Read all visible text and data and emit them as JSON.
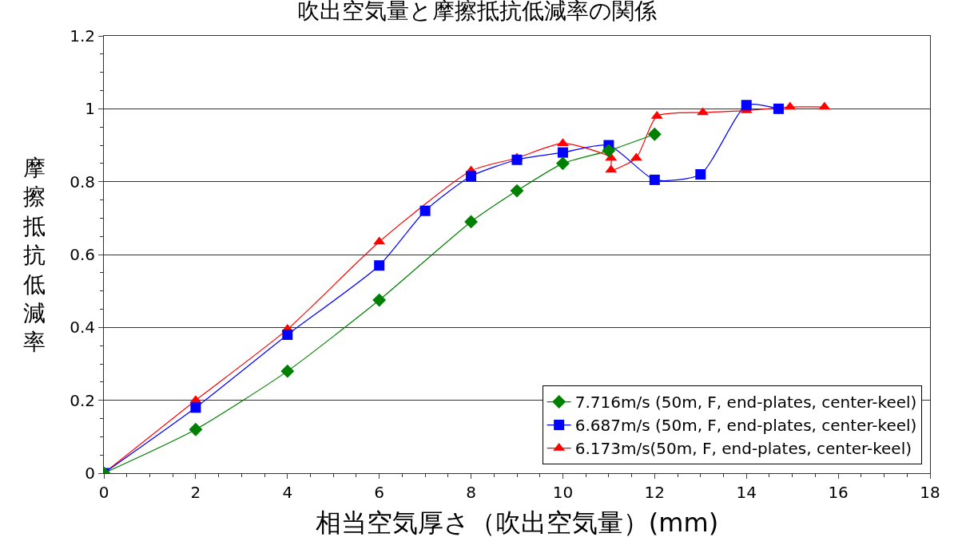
{
  "chart_data": {
    "type": "line",
    "title": "吹出空気量と摩擦抵抗低減率の関係",
    "xlabel": "相当空気厚さ（吹出空気量）(mm)",
    "ylabel": "摩擦抵抗低減率",
    "xlim": [
      0,
      18
    ],
    "xticks": [
      0,
      2,
      4,
      6,
      8,
      10,
      12,
      14,
      16,
      18
    ],
    "ylim": [
      0,
      1.2
    ],
    "yticks": [
      0,
      0.2,
      0.4,
      0.6,
      0.8,
      1,
      1.2
    ],
    "grid": "y",
    "legend": "bottom right",
    "line_style": "solid",
    "series": [
      {
        "name": "7.716m/s (50m, F, end-plates, center-keel)",
        "color": "#008000",
        "marker": "diamond",
        "x": [
          0,
          2,
          4,
          6,
          8,
          9,
          10,
          11,
          12
        ],
        "values": [
          0,
          0.12,
          0.28,
          0.475,
          0.69,
          0.775,
          0.85,
          0.885,
          0.93
        ]
      },
      {
        "name": "6.687m/s (50m, F, end-plates, center-keel)",
        "color": "#0000ff",
        "marker": "square",
        "x": [
          0,
          2,
          4,
          6,
          7,
          8,
          9,
          10,
          11,
          12,
          13,
          14,
          14.7
        ],
        "values": [
          0,
          0.18,
          0.38,
          0.57,
          0.72,
          0.815,
          0.86,
          0.88,
          0.9,
          0.805,
          0.82,
          1.01,
          1.0
        ]
      },
      {
        "name": "6.173m/s(50m, F, end-plates, center-keel)",
        "color": "#ff0000",
        "marker": "triangle",
        "x": [
          0,
          2,
          4,
          6,
          8,
          9,
          10,
          11.05,
          11.05,
          11.6,
          12.05,
          13.05,
          14,
          14.95,
          15.7
        ],
        "values": [
          0,
          0.2,
          0.395,
          0.635,
          0.83,
          0.865,
          0.905,
          0.865,
          0.832,
          0.865,
          0.98,
          0.99,
          0.995,
          1.005,
          1.005
        ]
      }
    ]
  }
}
